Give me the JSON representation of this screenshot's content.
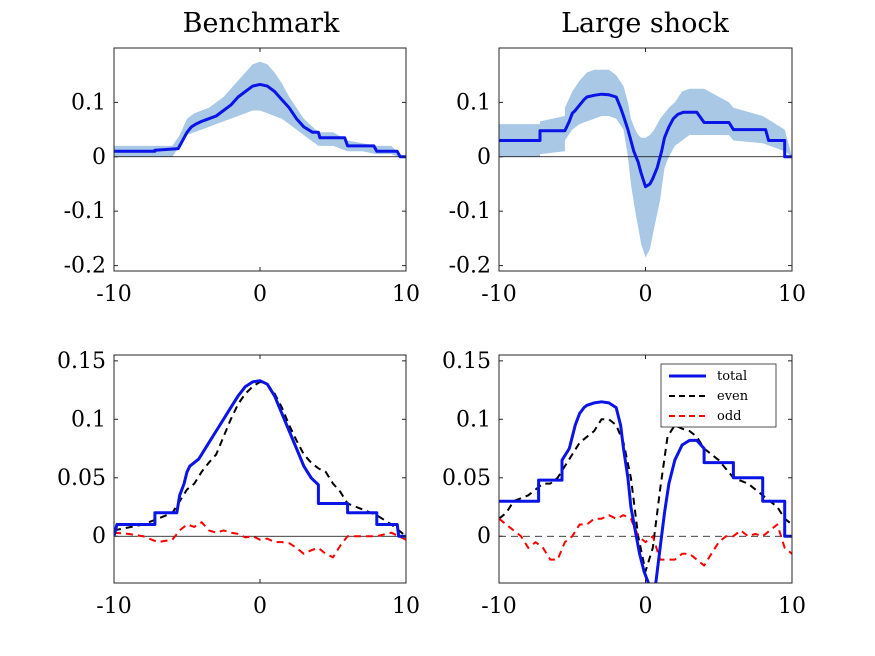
{
  "colors": {
    "total": "#0a14e6",
    "band": "#a8c8e6",
    "even": "#000000",
    "odd": "#ff0000",
    "zero": "#000000",
    "axes": "#262626"
  },
  "chart_data": [
    {
      "type": "line",
      "title": "Benchmark",
      "xlabel": "",
      "ylabel": "",
      "xlim": [
        -10,
        10
      ],
      "ylim": [
        -0.21,
        0.2
      ],
      "xticks": [
        -10,
        0,
        10
      ],
      "xtick_labels": [
        "-10",
        "0",
        "10"
      ],
      "yticks": [
        -0.2,
        -0.1,
        0,
        0.1
      ],
      "ytick_labels": [
        "-0.2",
        "-0.1",
        "0",
        "0.1"
      ],
      "zero_line": true,
      "grid": false,
      "legend": null,
      "band": {
        "x": [
          -10,
          -6,
          -5.5,
          -5,
          -4.5,
          -4,
          -3.5,
          -3,
          -2.5,
          -2,
          -1.5,
          -1,
          -0.5,
          0,
          0.5,
          1,
          1.5,
          2,
          2.5,
          3,
          4,
          5,
          6,
          7,
          8,
          9,
          9.5,
          10
        ],
        "upper": [
          0.02,
          0.02,
          0.04,
          0.07,
          0.08,
          0.085,
          0.09,
          0.1,
          0.11,
          0.125,
          0.14,
          0.155,
          0.17,
          0.175,
          0.17,
          0.155,
          0.135,
          0.11,
          0.09,
          0.07,
          0.045,
          0.045,
          0.03,
          0.025,
          0.02,
          0.02,
          0.005,
          0.0
        ],
        "lower": [
          0.0,
          0.0,
          0.02,
          0.04,
          0.045,
          0.05,
          0.055,
          0.06,
          0.065,
          0.07,
          0.075,
          0.08,
          0.085,
          0.085,
          0.08,
          0.075,
          0.07,
          0.06,
          0.05,
          0.04,
          0.02,
          0.02,
          0.01,
          0.01,
          0.005,
          0.005,
          0.0,
          0.0
        ]
      },
      "series": [
        {
          "name": "",
          "x": [
            -10,
            -7.2,
            -7.2,
            -5.6,
            -5.3,
            -5.0,
            -4.7,
            -4.4,
            -4.0,
            -3.5,
            -3.0,
            -2.5,
            -2.0,
            -1.5,
            -1.0,
            -0.5,
            0,
            0.5,
            1.0,
            1.5,
            2.0,
            2.5,
            3.0,
            3.6,
            4.0,
            4.1,
            5.8,
            6.0,
            7.8,
            8.0,
            9.4,
            9.6,
            10
          ],
          "y": [
            0.01,
            0.01,
            0.012,
            0.015,
            0.03,
            0.045,
            0.055,
            0.06,
            0.065,
            0.07,
            0.075,
            0.085,
            0.095,
            0.11,
            0.12,
            0.13,
            0.133,
            0.13,
            0.12,
            0.105,
            0.09,
            0.07,
            0.055,
            0.045,
            0.045,
            0.035,
            0.035,
            0.02,
            0.02,
            0.01,
            0.01,
            0.0,
            0.0
          ]
        }
      ]
    },
    {
      "type": "line",
      "title": "Large shock",
      "xlabel": "",
      "ylabel": "",
      "xlim": [
        -10,
        10
      ],
      "ylim": [
        -0.21,
        0.2
      ],
      "xticks": [
        -10,
        0,
        10
      ],
      "xtick_labels": [
        "-10",
        "0",
        "10"
      ],
      "yticks": [
        -0.2,
        -0.1,
        0,
        0.1
      ],
      "ytick_labels": [
        "-0.2",
        "-0.1",
        "0",
        "0.1"
      ],
      "zero_line": true,
      "grid": false,
      "legend": null,
      "band": {
        "x": [
          -10,
          -7.2,
          -7.2,
          -5.5,
          -5.5,
          -5,
          -4.5,
          -4,
          -3.5,
          -3,
          -2.5,
          -2,
          -1.5,
          -1.2,
          -1,
          -0.7,
          -0.5,
          -0.3,
          0,
          0.3,
          0.6,
          1.0,
          1.3,
          1.6,
          2,
          2.5,
          3,
          4,
          5.7,
          6,
          8,
          9.5,
          10
        ],
        "upper": [
          0.06,
          0.06,
          0.065,
          0.075,
          0.09,
          0.12,
          0.14,
          0.155,
          0.16,
          0.16,
          0.16,
          0.15,
          0.13,
          0.1,
          0.07,
          0.05,
          0.04,
          0.035,
          0.035,
          0.04,
          0.05,
          0.07,
          0.08,
          0.09,
          0.1,
          0.12,
          0.125,
          0.125,
          0.1,
          0.09,
          0.075,
          0.05,
          0.0
        ],
        "lower": [
          0.0,
          0.0,
          0.005,
          0.01,
          0.03,
          0.05,
          0.06,
          0.065,
          0.07,
          0.075,
          0.075,
          0.07,
          0.05,
          0.0,
          -0.05,
          -0.1,
          -0.13,
          -0.16,
          -0.185,
          -0.17,
          -0.13,
          -0.08,
          -0.02,
          0.0,
          0.02,
          0.03,
          0.04,
          0.04,
          0.04,
          0.03,
          0.025,
          0.01,
          0.0
        ]
      },
      "series": [
        {
          "name": "",
          "x": [
            -10,
            -7.2,
            -7.2,
            -5.5,
            -5.2,
            -5.0,
            -4.8,
            -4.5,
            -4.2,
            -4.0,
            -3.5,
            -3.0,
            -2.5,
            -2.0,
            -1.7,
            -1.5,
            -1.2,
            -1.0,
            -0.8,
            -0.5,
            -0.3,
            0,
            0.3,
            0.5,
            0.8,
            1.1,
            1.3,
            1.6,
            1.9,
            2.2,
            2.6,
            3.5,
            4.0,
            5.7,
            6.0,
            8.2,
            8.4,
            9.5,
            9.5,
            10
          ],
          "y": [
            0.03,
            0.03,
            0.048,
            0.048,
            0.065,
            0.08,
            0.085,
            0.095,
            0.105,
            0.11,
            0.113,
            0.115,
            0.114,
            0.11,
            0.09,
            0.075,
            0.05,
            0.03,
            0.01,
            -0.01,
            -0.03,
            -0.055,
            -0.05,
            -0.04,
            -0.02,
            0.01,
            0.035,
            0.055,
            0.07,
            0.078,
            0.082,
            0.082,
            0.063,
            0.063,
            0.05,
            0.05,
            0.03,
            0.03,
            0.0,
            0.0
          ]
        }
      ]
    },
    {
      "type": "line",
      "title": "",
      "xlabel": "",
      "ylabel": "",
      "xlim": [
        -10,
        10
      ],
      "ylim": [
        -0.04,
        0.155
      ],
      "xticks": [
        -10,
        0,
        10
      ],
      "xtick_labels": [
        "-10",
        "0",
        "10"
      ],
      "yticks": [
        0,
        0.05,
        0.1,
        0.15
      ],
      "ytick_labels": [
        "0",
        "0.05",
        "0.1",
        "0.15"
      ],
      "zero_line": true,
      "grid": false,
      "legend": null,
      "series": [
        {
          "name": "",
          "style": "solid",
          "x": [
            -10,
            -9.8,
            -7.2,
            -7.2,
            -5.7,
            -5.5,
            -5.2,
            -5.0,
            -4.8,
            -4.5,
            -4.2,
            -4.0,
            -3.5,
            -3.0,
            -2.5,
            -2.0,
            -1.5,
            -1.0,
            -0.5,
            0,
            0.5,
            1.0,
            1.5,
            2.0,
            2.5,
            3.0,
            3.5,
            4.0,
            4.0,
            6.0,
            6.0,
            8.0,
            8.0,
            9.4,
            9.5,
            10
          ],
          "y": [
            0.0,
            0.01,
            0.01,
            0.02,
            0.02,
            0.035,
            0.045,
            0.055,
            0.06,
            0.063,
            0.066,
            0.07,
            0.08,
            0.09,
            0.1,
            0.11,
            0.12,
            0.128,
            0.132,
            0.133,
            0.13,
            0.12,
            0.105,
            0.09,
            0.075,
            0.06,
            0.05,
            0.044,
            0.028,
            0.028,
            0.02,
            0.02,
            0.01,
            0.01,
            0.0,
            0.0
          ]
        },
        {
          "name": "",
          "style": "dash-black",
          "x": [
            -10,
            -8,
            -7,
            -6,
            -5.5,
            -5,
            -4.5,
            -4,
            -3.5,
            -3,
            -2.5,
            -2,
            -1.5,
            -1,
            -0.5,
            0,
            0.5,
            1,
            1.5,
            2,
            2.5,
            3,
            3.5,
            4,
            4.5,
            5,
            5.5,
            6,
            7,
            8,
            9,
            10
          ],
          "y": [
            0.005,
            0.01,
            0.015,
            0.02,
            0.03,
            0.04,
            0.045,
            0.055,
            0.063,
            0.07,
            0.085,
            0.1,
            0.113,
            0.122,
            0.128,
            0.132,
            0.13,
            0.122,
            0.11,
            0.095,
            0.082,
            0.07,
            0.063,
            0.058,
            0.055,
            0.045,
            0.038,
            0.028,
            0.023,
            0.018,
            0.01,
            0.0
          ]
        },
        {
          "name": "",
          "style": "dash-red",
          "x": [
            -10,
            -9,
            -8,
            -7,
            -6,
            -5.5,
            -5,
            -4.5,
            -4,
            -3.5,
            -3,
            -2.5,
            -2,
            -1.5,
            -1,
            -0.5,
            0,
            0.5,
            1,
            1.5,
            2,
            2.5,
            3,
            3.5,
            4,
            4.5,
            5,
            5.5,
            6,
            7,
            8,
            9,
            10
          ],
          "y": [
            0.003,
            0.002,
            0.0,
            -0.005,
            -0.003,
            0.005,
            0.01,
            0.008,
            0.012,
            0.005,
            0.003,
            0.005,
            0.003,
            0.002,
            -0.001,
            0.0,
            -0.003,
            -0.002,
            -0.005,
            -0.005,
            -0.006,
            -0.01,
            -0.015,
            -0.012,
            -0.01,
            -0.015,
            -0.018,
            -0.008,
            0.0,
            0.0,
            0.0,
            0.003,
            -0.003
          ]
        }
      ]
    },
    {
      "type": "line",
      "title": "",
      "xlabel": "",
      "ylabel": "",
      "xlim": [
        -10,
        10
      ],
      "ylim": [
        -0.04,
        0.155
      ],
      "xticks": [
        -10,
        0,
        10
      ],
      "xtick_labels": [
        "-10",
        "0",
        "10"
      ],
      "yticks": [
        0,
        0.05,
        0.1,
        0.15
      ],
      "ytick_labels": [
        "0",
        "0.05",
        "0.1",
        "0.15"
      ],
      "zero_line": true,
      "grid": false,
      "legend": "top-right",
      "series": [
        {
          "name": "total",
          "style": "solid",
          "x": [
            -10,
            -7.3,
            -7.3,
            -5.7,
            -5.7,
            -5.2,
            -5.0,
            -4.8,
            -4.5,
            -4.2,
            -4.0,
            -3.5,
            -3.0,
            -2.5,
            -2.0,
            -1.7,
            -1.5,
            -1.2,
            -1.0,
            -0.7,
            -0.4,
            -0.1,
            0.2,
            0.5,
            0.7,
            1.0,
            1.3,
            1.6,
            2.0,
            2.5,
            3.0,
            3.5,
            4.0,
            4.0,
            6.0,
            6.0,
            8.0,
            8.0,
            9.5,
            9.5,
            10
          ],
          "y": [
            0.03,
            0.03,
            0.048,
            0.048,
            0.065,
            0.075,
            0.085,
            0.095,
            0.105,
            0.11,
            0.112,
            0.114,
            0.115,
            0.114,
            0.11,
            0.095,
            0.075,
            0.05,
            0.025,
            0.005,
            -0.015,
            -0.03,
            -0.04,
            -0.045,
            -0.04,
            -0.01,
            0.02,
            0.045,
            0.065,
            0.078,
            0.082,
            0.082,
            0.075,
            0.063,
            0.063,
            0.05,
            0.05,
            0.03,
            0.03,
            0.0,
            0.0
          ]
        },
        {
          "name": "even",
          "style": "dash-black",
          "x": [
            -10,
            -9.5,
            -9,
            -8,
            -7,
            -6.5,
            -6,
            -5.5,
            -5,
            -4.5,
            -4,
            -3.5,
            -3,
            -2.5,
            -2,
            -1.5,
            -1,
            -0.5,
            0,
            0.5,
            1,
            1.5,
            2,
            2.5,
            3,
            3.5,
            4,
            5,
            6,
            7,
            8,
            9,
            9.5,
            10
          ],
          "y": [
            0.015,
            0.02,
            0.03,
            0.035,
            0.045,
            0.045,
            0.05,
            0.06,
            0.07,
            0.08,
            0.085,
            0.09,
            0.1,
            0.1,
            0.095,
            0.08,
            0.05,
            0.0,
            -0.03,
            -0.01,
            0.04,
            0.085,
            0.095,
            0.092,
            0.09,
            0.085,
            0.075,
            0.065,
            0.05,
            0.045,
            0.035,
            0.025,
            0.015,
            0.01
          ]
        },
        {
          "name": "odd",
          "style": "dash-red",
          "x": [
            -10,
            -9.5,
            -9,
            -8.5,
            -8,
            -7.5,
            -7,
            -6.5,
            -6,
            -5.5,
            -5,
            -4.5,
            -4,
            -3.5,
            -3,
            -2.5,
            -2,
            -1.5,
            -1,
            -0.5,
            0,
            0.5,
            1,
            1.5,
            2,
            2.5,
            3,
            3.5,
            4,
            4.5,
            5,
            5.5,
            6,
            6.5,
            7,
            7.5,
            8,
            8.5,
            9,
            9.5,
            10
          ],
          "y": [
            0.015,
            0.01,
            0.005,
            0.0,
            -0.01,
            -0.005,
            -0.01,
            -0.02,
            -0.02,
            -0.005,
            0.0,
            0.01,
            0.01,
            0.015,
            0.015,
            0.018,
            0.015,
            0.018,
            0.015,
            0.0,
            -0.005,
            0.0,
            -0.02,
            -0.02,
            -0.02,
            -0.015,
            -0.015,
            -0.02,
            -0.025,
            -0.015,
            -0.005,
            0.0,
            0.0,
            0.005,
            0.0,
            0.002,
            0.0,
            0.005,
            0.01,
            -0.01,
            -0.015
          ]
        }
      ]
    }
  ]
}
